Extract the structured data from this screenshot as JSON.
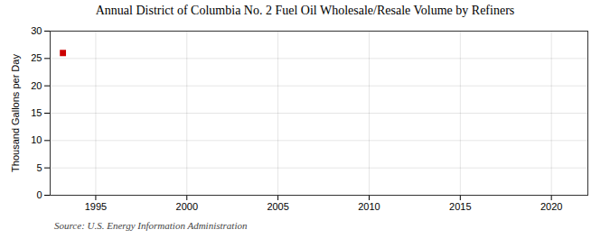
{
  "chart_data": {
    "type": "scatter",
    "title": "Annual District of Columbia No. 2 Fuel Oil Wholesale/Resale Volume by Refiners",
    "ylabel": "Thousand Gallons per Day",
    "source": "Source: U.S. Energy Information Administration",
    "x": [
      1993.2
    ],
    "values": [
      26
    ],
    "color": "#cc0000",
    "marker": "square",
    "xlim": [
      1992.5,
      2022
    ],
    "xticks": [
      1995,
      2000,
      2005,
      2010,
      2015,
      2020
    ],
    "ylim": [
      0,
      30
    ],
    "yticks": [
      0,
      5,
      10,
      15,
      20,
      25,
      30
    ],
    "grid": true
  }
}
